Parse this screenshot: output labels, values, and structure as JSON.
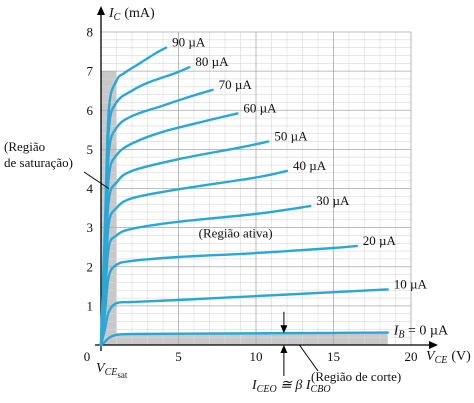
{
  "chart_data": {
    "type": "line",
    "title": "",
    "xlabel": "V",
    "xlabel_sub": "CE",
    "xlabel_unit": "(V)",
    "ylabel": "I",
    "ylabel_sub": "C",
    "ylabel_unit": "(mA)",
    "xlim": [
      0,
      20
    ],
    "ylim": [
      0,
      8
    ],
    "x_ticks": [
      "0",
      "5",
      "10",
      "15",
      "20"
    ],
    "y_ticks": [
      "1",
      "2",
      "3",
      "4",
      "5",
      "6",
      "7",
      "8"
    ],
    "grid": true,
    "curve_color": "#29a8d8",
    "region_color": "#c8c8c8",
    "v_ce_sat": 1,
    "series": [
      {
        "name": "I_B = 0 µA",
        "label": "I",
        "label_sub": "B",
        "label_rest": " = 0 µA",
        "x": [
          0,
          0.25,
          0.5,
          1,
          2,
          5,
          10,
          15,
          18.5
        ],
        "y": [
          0,
          0.08,
          0.18,
          0.26,
          0.28,
          0.29,
          0.3,
          0.31,
          0.32
        ]
      },
      {
        "name": "10 µA",
        "label": "10 µA",
        "x": [
          0,
          0.25,
          0.5,
          1,
          2,
          5,
          10,
          15,
          18.5
        ],
        "y": [
          0,
          0.4,
          0.85,
          1.07,
          1.1,
          1.15,
          1.25,
          1.35,
          1.42
        ]
      },
      {
        "name": "20 µA",
        "label": "20 µA",
        "x": [
          0,
          0.25,
          0.5,
          1,
          2,
          5,
          10,
          15,
          16.5
        ],
        "y": [
          0,
          0.8,
          1.75,
          2.05,
          2.15,
          2.25,
          2.35,
          2.48,
          2.53
        ]
      },
      {
        "name": "30 µA",
        "label": "30 µA",
        "x": [
          0,
          0.25,
          0.5,
          1,
          2,
          5,
          10,
          13.5
        ],
        "y": [
          0,
          1.2,
          2.5,
          2.8,
          2.97,
          3.15,
          3.35,
          3.55
        ]
      },
      {
        "name": "40 µA",
        "label": "40 µA",
        "x": [
          0,
          0.25,
          0.5,
          1,
          2,
          5,
          10,
          12
        ],
        "y": [
          0,
          1.5,
          3.1,
          3.5,
          3.75,
          3.98,
          4.28,
          4.45
        ]
      },
      {
        "name": "50 µA",
        "label": "50 µA",
        "x": [
          0,
          0.25,
          0.5,
          1,
          2,
          5,
          9,
          10.8
        ],
        "y": [
          0,
          1.8,
          3.7,
          4.15,
          4.45,
          4.75,
          5.05,
          5.2
        ]
      },
      {
        "name": "60 µA",
        "label": "60 µA",
        "x": [
          0,
          0.25,
          0.5,
          1,
          2,
          4,
          7,
          8.8
        ],
        "y": [
          0,
          2.1,
          4.3,
          4.85,
          5.15,
          5.45,
          5.75,
          5.92
        ]
      },
      {
        "name": "70 µA",
        "label": "70 µA",
        "x": [
          0,
          0.25,
          0.5,
          1,
          2,
          4,
          6,
          7.2
        ],
        "y": [
          0,
          2.4,
          4.9,
          5.55,
          5.85,
          6.12,
          6.38,
          6.52
        ]
      },
      {
        "name": "80 µA",
        "label": "80 µA",
        "x": [
          0,
          0.25,
          0.5,
          1,
          2,
          3,
          4.8,
          5.7
        ],
        "y": [
          0,
          2.7,
          5.5,
          6.2,
          6.5,
          6.7,
          6.95,
          7.1
        ]
      },
      {
        "name": "90 µA",
        "label": "90 µA",
        "x": [
          0,
          0.25,
          0.5,
          1,
          1.5,
          2.5,
          3.5,
          4.2
        ],
        "y": [
          0,
          3.0,
          6.0,
          6.75,
          6.95,
          7.2,
          7.45,
          7.6
        ]
      }
    ],
    "annotations": {
      "saturation_line1": "(Região",
      "saturation_line2": "de saturação)",
      "active": "(Região ativa)",
      "cutoff": "(Região de corte)",
      "iceo_a": "I",
      "iceo_a_sub": "CEO",
      "iceo_mid": " ≅ β I",
      "iceo_b_sub": "CBO",
      "vcesat_main": "V",
      "vcesat_sub1": "CE",
      "vcesat_sub2": "sat"
    }
  }
}
